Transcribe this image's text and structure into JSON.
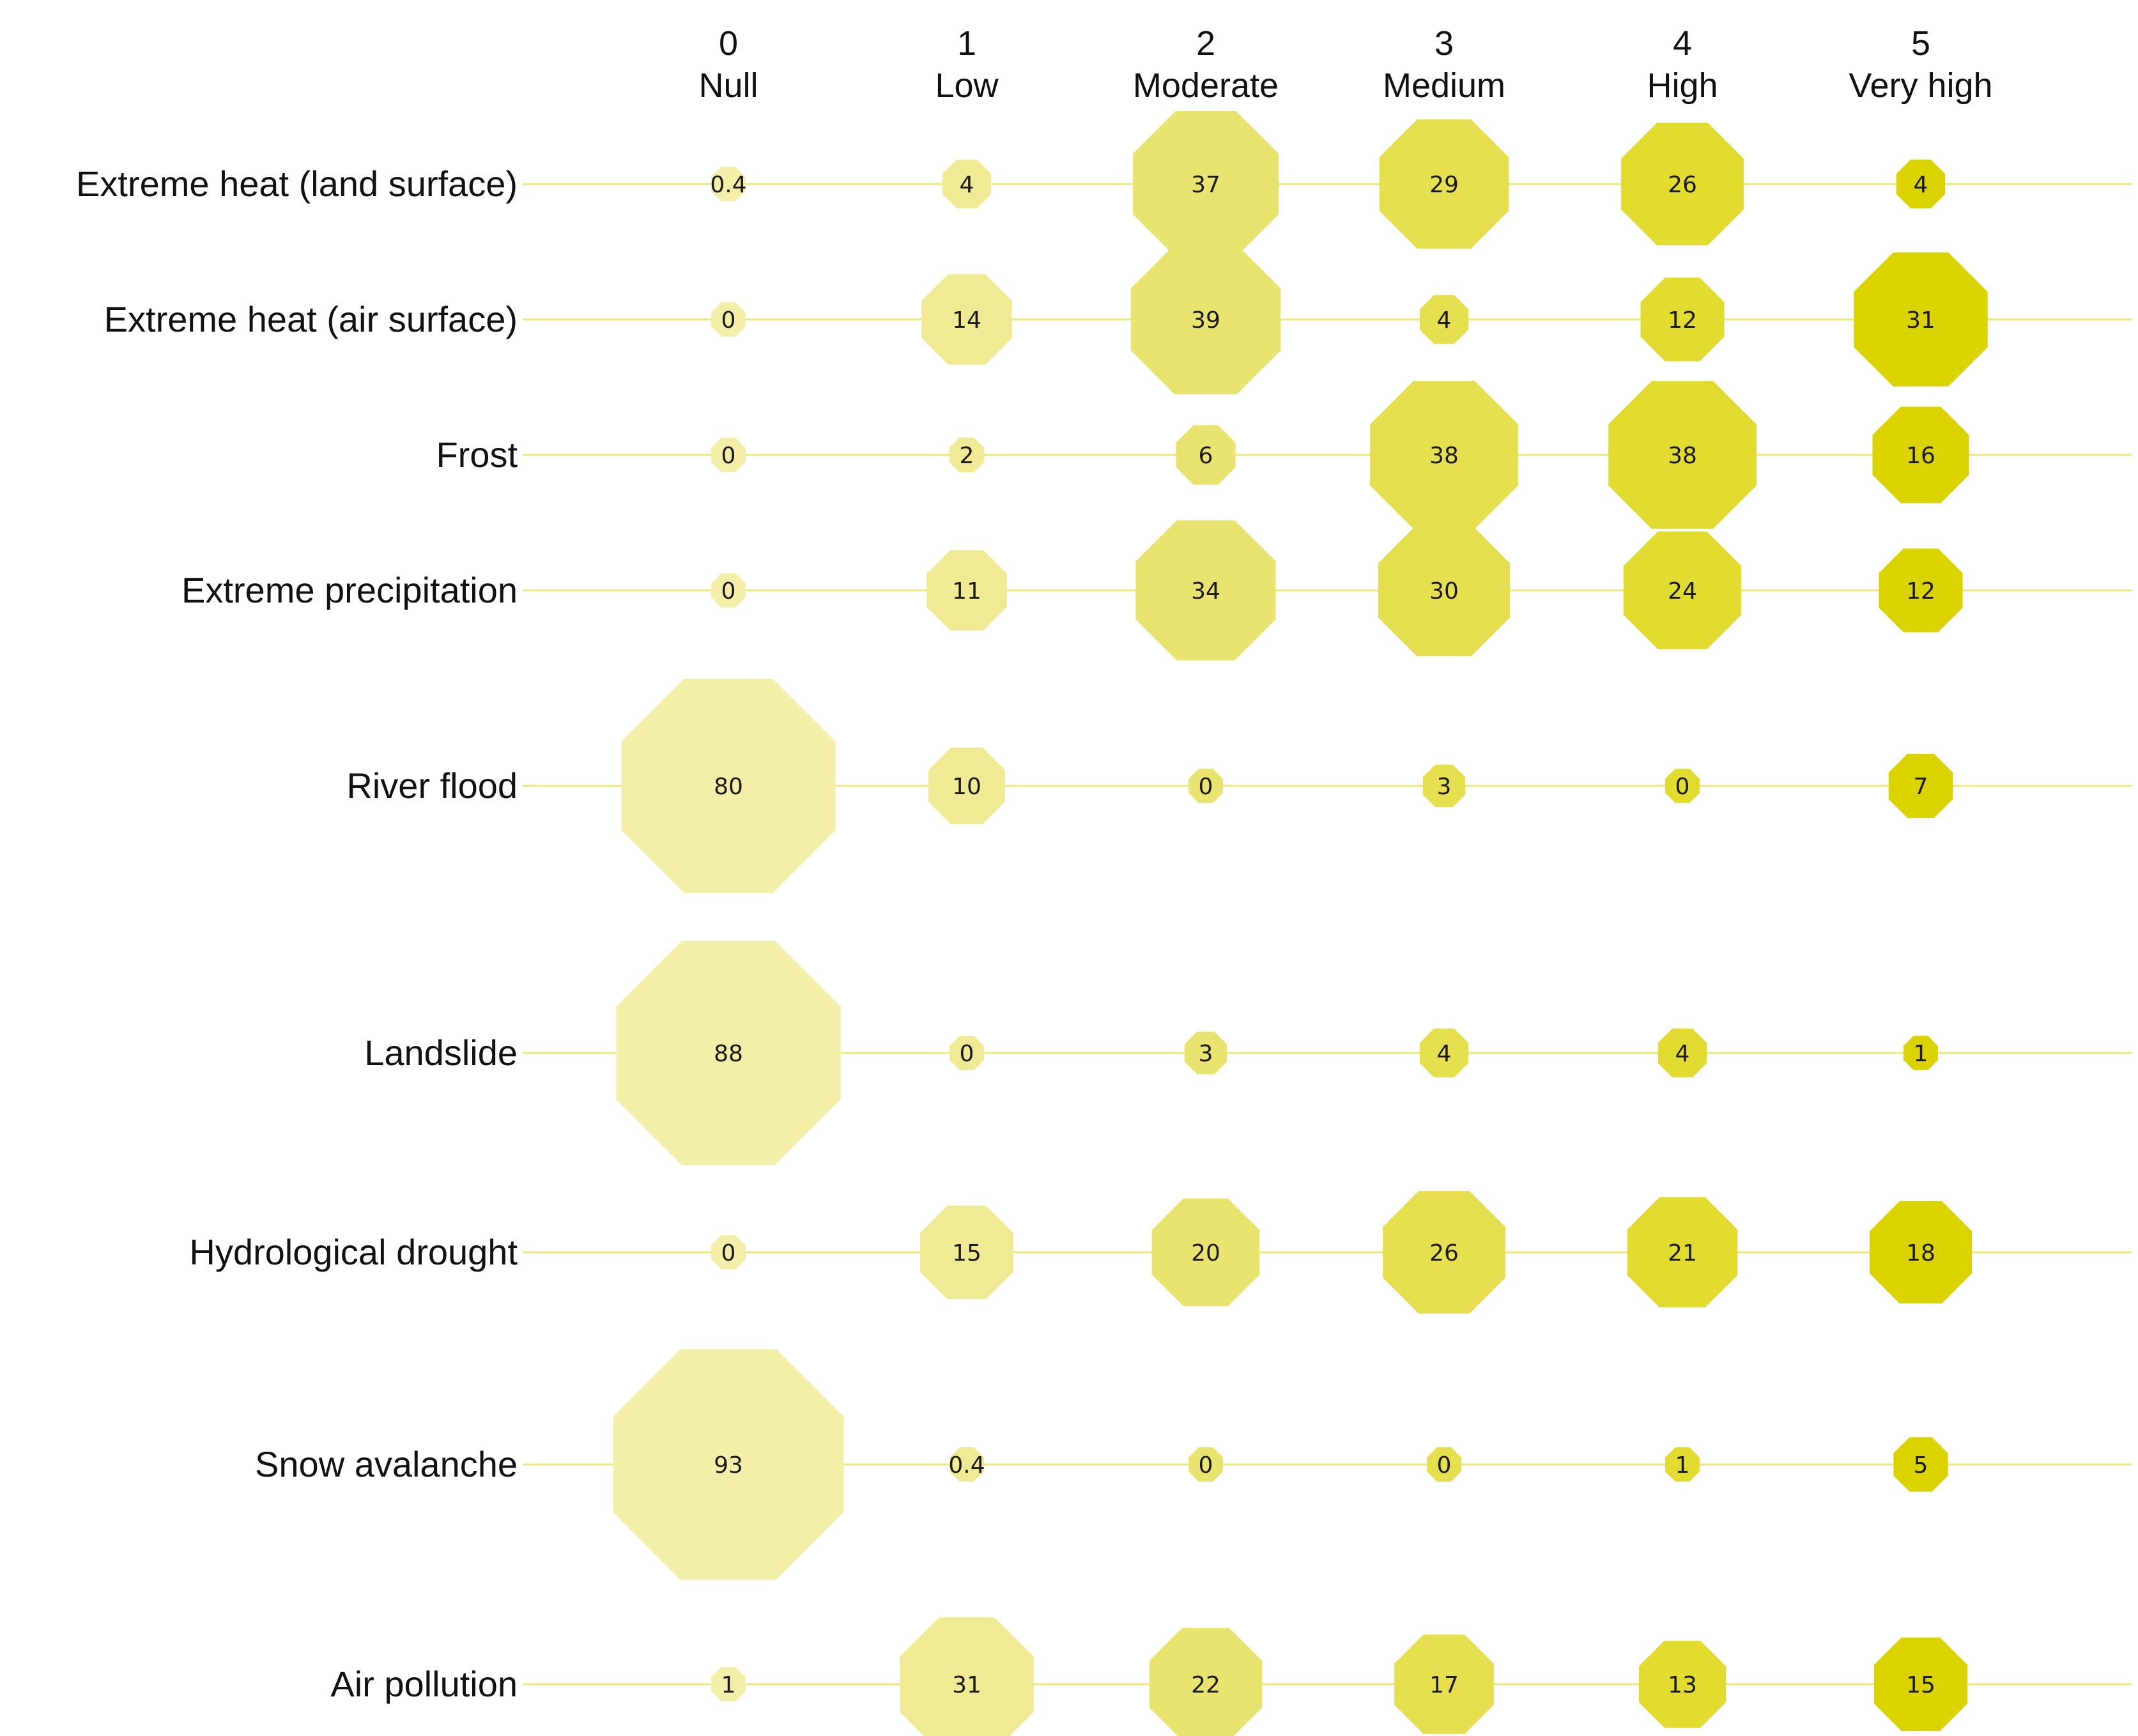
{
  "chart_data": {
    "type": "bubble-matrix",
    "levels": [
      {
        "number": "0",
        "name": "Null",
        "color": "#F3EEA8"
      },
      {
        "number": "1",
        "name": "Low",
        "color": "#EFEA93"
      },
      {
        "number": "2",
        "name": "Moderate",
        "color": "#E9E470"
      },
      {
        "number": "3",
        "name": "Medium",
        "color": "#E6E050"
      },
      {
        "number": "4",
        "name": "High",
        "color": "#E2DB30"
      },
      {
        "number": "5",
        "name": "Very high",
        "color": "#DBD300"
      }
    ],
    "line_color": "#EDE77A",
    "rows": [
      {
        "label": "Extreme heat (land surface)",
        "values": [
          0.4,
          4,
          37,
          29,
          26,
          4
        ],
        "labels": [
          "0.4",
          "4",
          "37",
          "29",
          "26",
          "4"
        ]
      },
      {
        "label": "Extreme heat (air surface)",
        "values": [
          0,
          14,
          39,
          4,
          12,
          31
        ],
        "labels": [
          "0",
          "14",
          "39",
          "4",
          "12",
          "31"
        ]
      },
      {
        "label": "Frost",
        "values": [
          0,
          2,
          6,
          38,
          38,
          16
        ],
        "labels": [
          "0",
          "2",
          "6",
          "38",
          "38",
          "16"
        ]
      },
      {
        "label": "Extreme precipitation",
        "values": [
          0,
          11,
          34,
          30,
          24,
          12
        ],
        "labels": [
          "0",
          "11",
          "34",
          "30",
          "24",
          "12"
        ]
      },
      {
        "label": "River flood",
        "values": [
          80,
          10,
          0,
          3,
          0,
          7
        ],
        "labels": [
          "80",
          "10",
          "0",
          "3",
          "0",
          "7"
        ]
      },
      {
        "label": "Landslide",
        "values": [
          88,
          0,
          3,
          4,
          4,
          1
        ],
        "labels": [
          "88",
          "0",
          "3",
          "4",
          "4",
          "1"
        ]
      },
      {
        "label": "Hydrological drought",
        "values": [
          0,
          15,
          20,
          26,
          21,
          18
        ],
        "labels": [
          "0",
          "15",
          "20",
          "26",
          "21",
          "18"
        ]
      },
      {
        "label": "Snow avalanche",
        "values": [
          93,
          0.4,
          0,
          0,
          1,
          5
        ],
        "labels": [
          "93",
          "0.4",
          "0",
          "0",
          "1",
          "5"
        ]
      },
      {
        "label": "Air pollution",
        "values": [
          1,
          31,
          22,
          17,
          13,
          15
        ],
        "labels": [
          "1",
          "31",
          "22",
          "17",
          "13",
          "15"
        ]
      }
    ]
  }
}
